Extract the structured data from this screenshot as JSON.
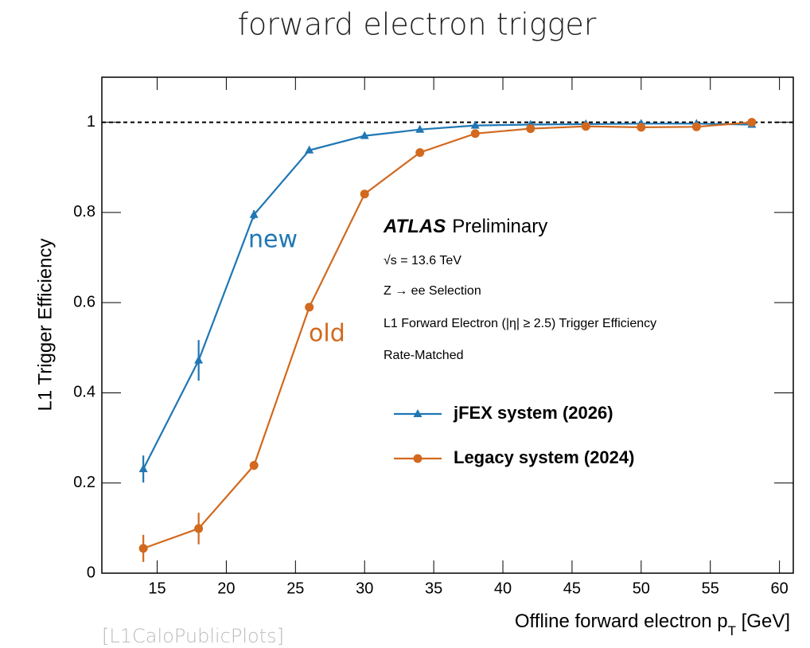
{
  "chart_data": {
    "type": "line",
    "title": "forward electron trigger",
    "xlabel": {
      "main": "Offline forward electron p",
      "sub": "T",
      "unit": " [GeV]"
    },
    "ylabel": "L1 Trigger Efficiency",
    "xlim": [
      11,
      61
    ],
    "ylim": [
      0,
      1.1
    ],
    "xticks": [
      15,
      20,
      25,
      30,
      35,
      40,
      45,
      50,
      55,
      60
    ],
    "yticks": [
      0,
      0.2,
      0.4,
      0.6,
      0.8,
      1
    ],
    "reference_line": 1,
    "x": [
      14,
      18,
      22,
      26,
      30,
      34,
      38,
      42,
      46,
      50,
      54,
      58
    ],
    "series": [
      {
        "name": "jFEX system (2026)",
        "color": "#1f77b4",
        "marker": "triangle",
        "values": [
          0.231,
          0.472,
          0.795,
          0.938,
          0.97,
          0.984,
          0.993,
          0.995,
          0.996,
          0.997,
          0.997,
          0.995
        ],
        "errors": [
          0.03,
          0.045,
          0.01,
          0.005,
          0.004,
          0.003,
          0.003,
          0.003,
          0.003,
          0.003,
          0.003,
          0.003
        ]
      },
      {
        "name": "Legacy system (2024)",
        "color": "#d2691e",
        "marker": "circle",
        "values": [
          0.055,
          0.099,
          0.239,
          0.59,
          0.841,
          0.933,
          0.975,
          0.986,
          0.991,
          0.989,
          0.99,
          1.0
        ],
        "errors": [
          0.03,
          0.035,
          0.01,
          0.008,
          0.005,
          0.004,
          0.003,
          0.003,
          0.003,
          0.003,
          0.003,
          0.003
        ]
      }
    ],
    "annotations": {
      "experiment": "ATLAS",
      "status": "Preliminary",
      "energy": "√s = 13.6 TeV",
      "selection": "Z → ee Selection",
      "trigger": "L1 Forward Electron (|η| ≥ 2.5) Trigger Efficiency",
      "method": "Rate-Matched",
      "new": "new",
      "old": "old",
      "source": "[L1CaloPublicPlots]"
    }
  }
}
